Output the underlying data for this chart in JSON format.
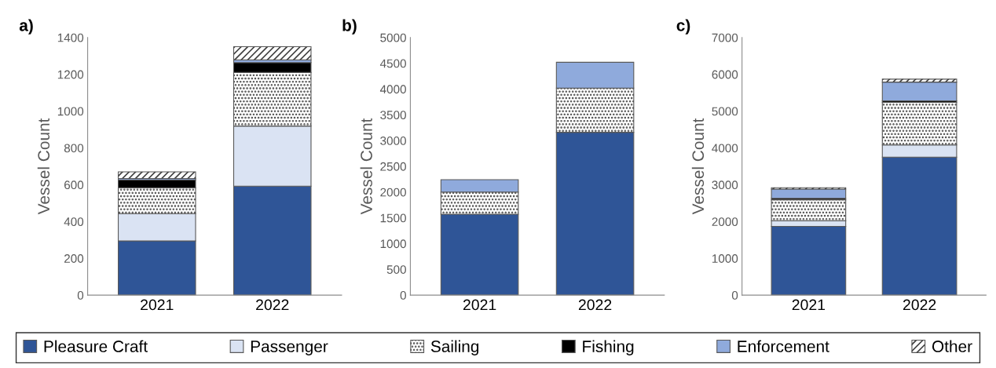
{
  "chart_data": [
    {
      "type": "bar",
      "title": "a)",
      "ylabel": "Vessel Count",
      "categories": [
        "2021",
        "2022"
      ],
      "stacked": true,
      "ylim": [
        0,
        1400
      ],
      "yticks": [
        0,
        200,
        400,
        600,
        800,
        1000,
        1200,
        1400
      ],
      "grid": false,
      "legend": "bottom",
      "series": [
        {
          "name": "Pleasure Craft",
          "color": "#2f5597",
          "values": [
            295,
            592
          ]
        },
        {
          "name": "Passenger",
          "color": "#dae3f3",
          "values": [
            148,
            327
          ]
        },
        {
          "name": "Sailing",
          "color": "#ffffff",
          "values": [
            140,
            291
          ]
        },
        {
          "name": "Fishing",
          "color": "#000000",
          "values": [
            43,
            54
          ]
        },
        {
          "name": "Enforcement",
          "color": "#8faadc",
          "values": [
            8,
            15
          ]
        },
        {
          "name": "Other",
          "color": "#ffffff",
          "values": [
            36,
            71
          ]
        }
      ]
    },
    {
      "type": "bar",
      "title": "b)",
      "ylabel": "Vessel Count",
      "categories": [
        "2021",
        "2022"
      ],
      "stacked": true,
      "ylim": [
        0,
        5000
      ],
      "yticks": [
        0,
        500,
        1000,
        1500,
        2000,
        2500,
        3000,
        3500,
        4000,
        4500,
        5000
      ],
      "grid": false,
      "series": [
        {
          "color": "#2f5597",
          "values": [
            1570,
            3160
          ]
        },
        {
          "color": "#dae3f3",
          "values": [
            null,
            null
          ]
        },
        {
          "color": "#ffffff",
          "values": [
            430,
            860
          ]
        },
        {
          "color": "#000000",
          "values": [
            null,
            null
          ]
        },
        {
          "color": "#8faadc",
          "values": [
            240,
            500
          ]
        },
        {
          "color": "#ffffff",
          "values": [
            null,
            null
          ]
        }
      ]
    },
    {
      "type": "bar",
      "title": "c)",
      "ylabel": "Vessel Count",
      "categories": [
        "2021",
        "2022"
      ],
      "stacked": true,
      "ylim": [
        0,
        7000
      ],
      "yticks": [
        0,
        1000,
        2000,
        3000,
        4000,
        5000,
        6000,
        7000
      ],
      "grid": false,
      "series": [
        {
          "color": "#2f5597",
          "values": [
            1870,
            3750
          ]
        },
        {
          "color": "#dae3f3",
          "values": [
            150,
            330
          ]
        },
        {
          "color": "#ffffff",
          "values": [
            570,
            1160
          ]
        },
        {
          "color": "#000000",
          "values": [
            40,
            40
          ]
        },
        {
          "color": "#8faadc",
          "values": [
            250,
            510
          ]
        },
        {
          "color": "#ffffff",
          "values": [
            40,
            80
          ]
        }
      ]
    }
  ]
}
